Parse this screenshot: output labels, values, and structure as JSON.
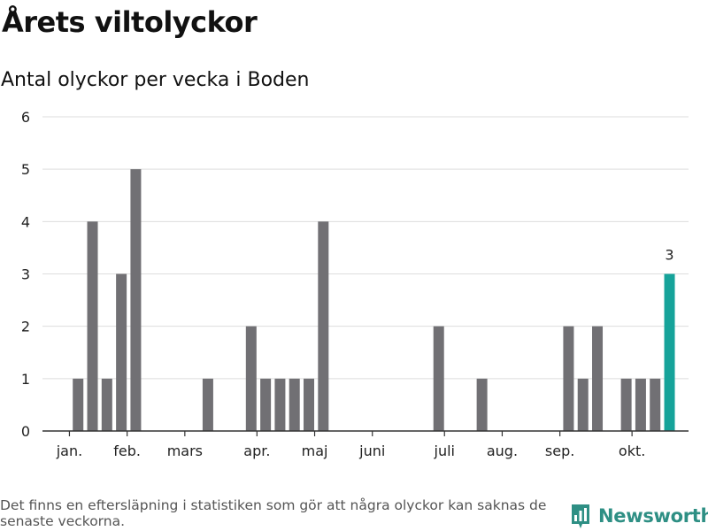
{
  "title": "Årets viltolyckor",
  "subtitle": "Antal olyckor per vecka i Boden",
  "footnote": "Det finns en eftersläpning i statistiken som gör att några olyckor kan saknas de senaste veckorna.",
  "brand": {
    "name": "Newsworthy",
    "icon": "newsworthy-logo-icon"
  },
  "colors": {
    "bar": "#717074",
    "highlight": "#16a39a",
    "grid": "#dddddd",
    "axis": "#333333",
    "brand": "#2e8f84"
  },
  "chart_data": {
    "type": "bar",
    "x_unit": "week",
    "x_range": [
      0,
      43
    ],
    "weeks": [
      1,
      2,
      3,
      4,
      5,
      6,
      7,
      8,
      9,
      10,
      11,
      12,
      13,
      14,
      15,
      16,
      17,
      18,
      19,
      20,
      21,
      22,
      23,
      24,
      25,
      26,
      27,
      28,
      29,
      30,
      31,
      32,
      33,
      34,
      35,
      36,
      37,
      38,
      39,
      40,
      41,
      42
    ],
    "values": [
      0,
      1,
      4,
      1,
      3,
      5,
      0,
      0,
      0,
      0,
      1,
      0,
      0,
      2,
      1,
      1,
      1,
      1,
      4,
      0,
      0,
      0,
      0,
      0,
      0,
      0,
      2,
      0,
      0,
      1,
      0,
      0,
      0,
      0,
      0,
      2,
      1,
      2,
      0,
      1,
      1,
      1
    ],
    "current_week": {
      "week": 43,
      "value": 3,
      "label": "3"
    },
    "month_ticks": [
      {
        "label": "jan.",
        "week": 1.4
      },
      {
        "label": "feb.",
        "week": 5.4
      },
      {
        "label": "mars",
        "week": 9.4
      },
      {
        "label": "apr.",
        "week": 14.4
      },
      {
        "label": "maj",
        "week": 18.4
      },
      {
        "label": "juni",
        "week": 22.4
      },
      {
        "label": "juli",
        "week": 27.4
      },
      {
        "label": "aug.",
        "week": 31.4
      },
      {
        "label": "sep.",
        "week": 35.4
      },
      {
        "label": "okt.",
        "week": 40.4
      }
    ],
    "y_ticks": [
      0,
      1,
      2,
      3,
      4,
      5,
      6
    ],
    "ylim": [
      0,
      6
    ],
    "grid": true,
    "legend": "none"
  }
}
